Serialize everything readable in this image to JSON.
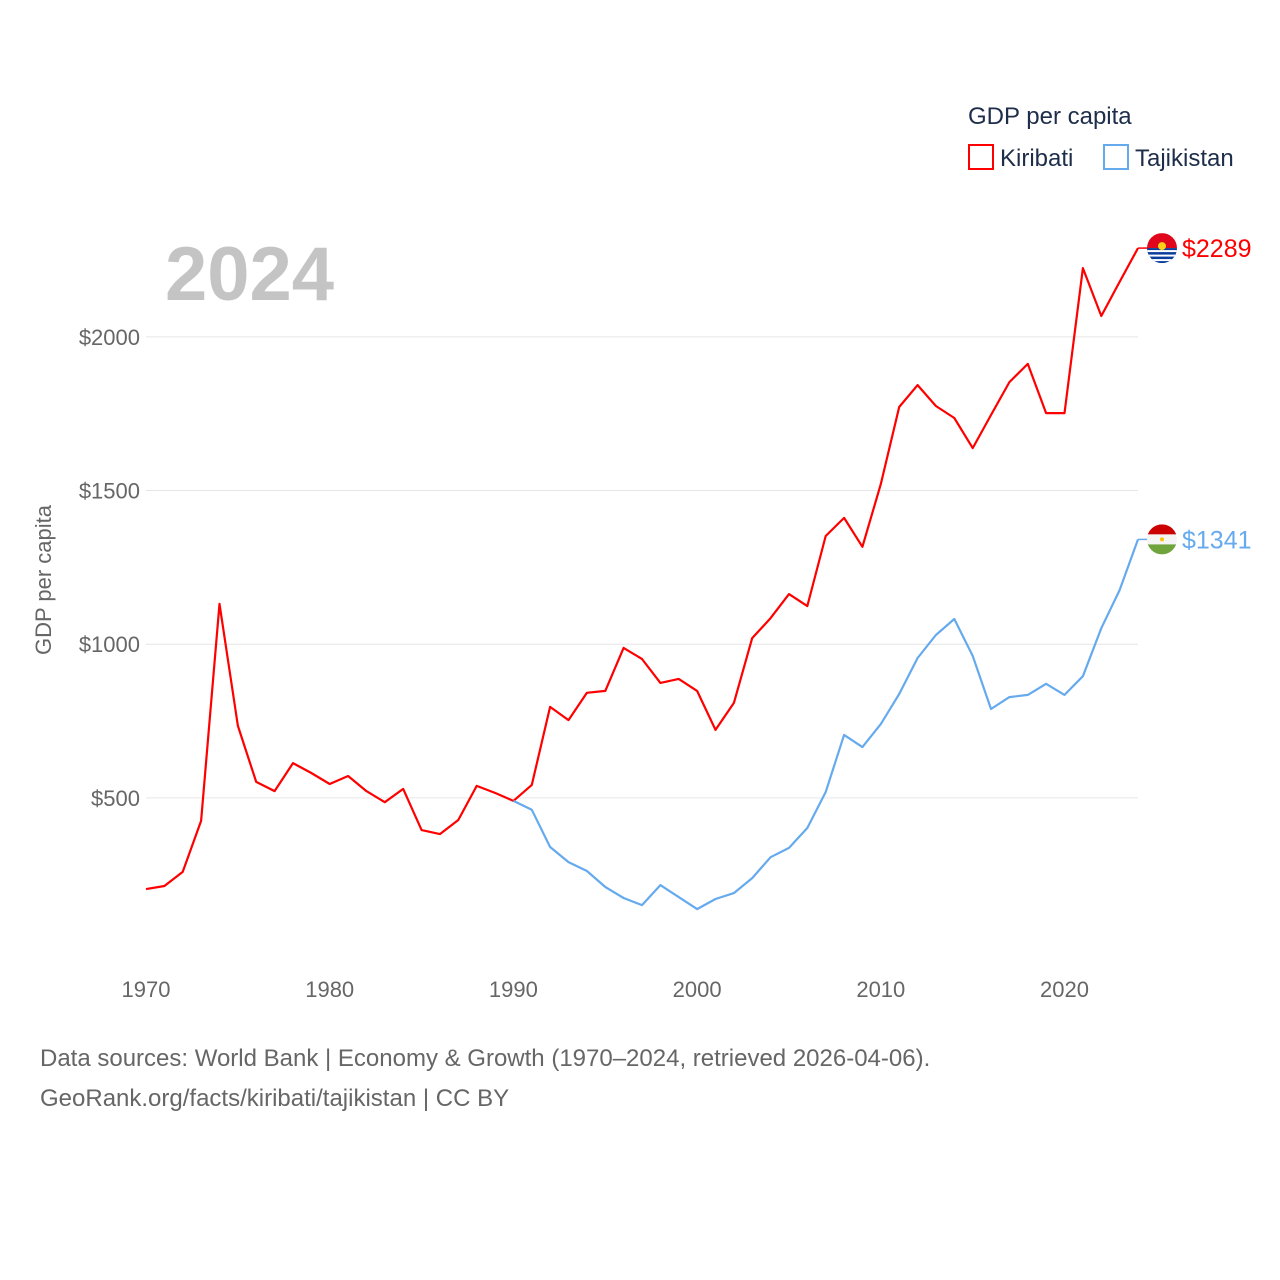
{
  "chart_data": {
    "type": "line",
    "title": "GDP per capita",
    "year_label": "2024",
    "xlabel": "",
    "ylabel": "GDP per capita",
    "xlim": [
      1970,
      2024
    ],
    "ylim": [
      0,
      2300
    ],
    "xticks": [
      1970,
      1980,
      1990,
      2000,
      2010,
      2020
    ],
    "yticks": [
      {
        "v": 500,
        "label": "$500"
      },
      {
        "v": 1000,
        "label": "$1000"
      },
      {
        "v": 1500,
        "label": "$1500"
      },
      {
        "v": 2000,
        "label": "$2000"
      }
    ],
    "grid": true,
    "legend_position": "top-right",
    "series": [
      {
        "name": "Kiribati",
        "color": "#ff0000",
        "end_label": "$2289",
        "x_start": 1970,
        "values": [
          203,
          213,
          259,
          425,
          1131,
          734,
          552,
          522,
          613,
          581,
          545,
          571,
          522,
          486,
          529,
          395,
          382,
          428,
          539,
          516,
          490,
          542,
          796,
          753,
          842,
          848,
          988,
          952,
          874,
          887,
          848,
          721,
          809,
          1020,
          1085,
          1163,
          1124,
          1352,
          1411,
          1317,
          1521,
          1772,
          1843,
          1775,
          1736,
          1638,
          1746,
          1853,
          1912,
          1752,
          1752,
          2224,
          2068,
          2179,
          2289
        ]
      },
      {
        "name": "Tajikistan",
        "color": "#66aaee",
        "end_label": "$1341",
        "x_start": 1990,
        "values": [
          490,
          461,
          340,
          291,
          262,
          210,
          174,
          151,
          216,
          177,
          138,
          171,
          190,
          239,
          307,
          337,
          402,
          519,
          705,
          665,
          740,
          838,
          955,
          1030,
          1082,
          962,
          789,
          828,
          835,
          871,
          835,
          896,
          1052,
          1176,
          1341
        ]
      }
    ]
  },
  "footer": {
    "line1": "Data sources: World Bank | Economy & Growth (1970–2024, retrieved 2026-04-06).",
    "line2": "GeoRank.org/facts/kiribati/tajikistan | CC BY"
  }
}
